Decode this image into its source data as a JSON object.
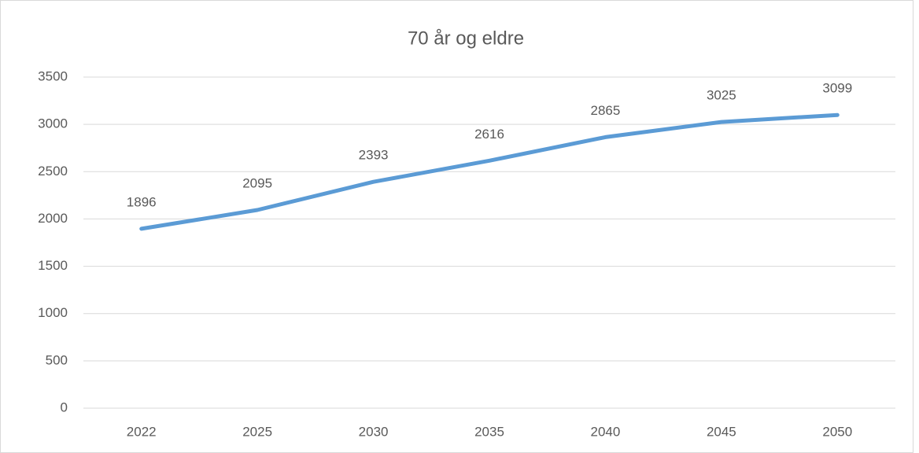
{
  "chart_data": {
    "type": "line",
    "title": "70 år og eldre",
    "categories": [
      "2022",
      "2025",
      "2030",
      "2035",
      "2040",
      "2045",
      "2050"
    ],
    "series": [
      {
        "name": "70 år og eldre",
        "color": "#5b9bd5",
        "values": [
          1896,
          2095,
          2393,
          2616,
          2865,
          3025,
          3099
        ]
      }
    ],
    "ylim": [
      0,
      3500
    ],
    "yticks": [
      0,
      500,
      1000,
      1500,
      2000,
      2500,
      3000,
      3500
    ],
    "grid": true
  }
}
